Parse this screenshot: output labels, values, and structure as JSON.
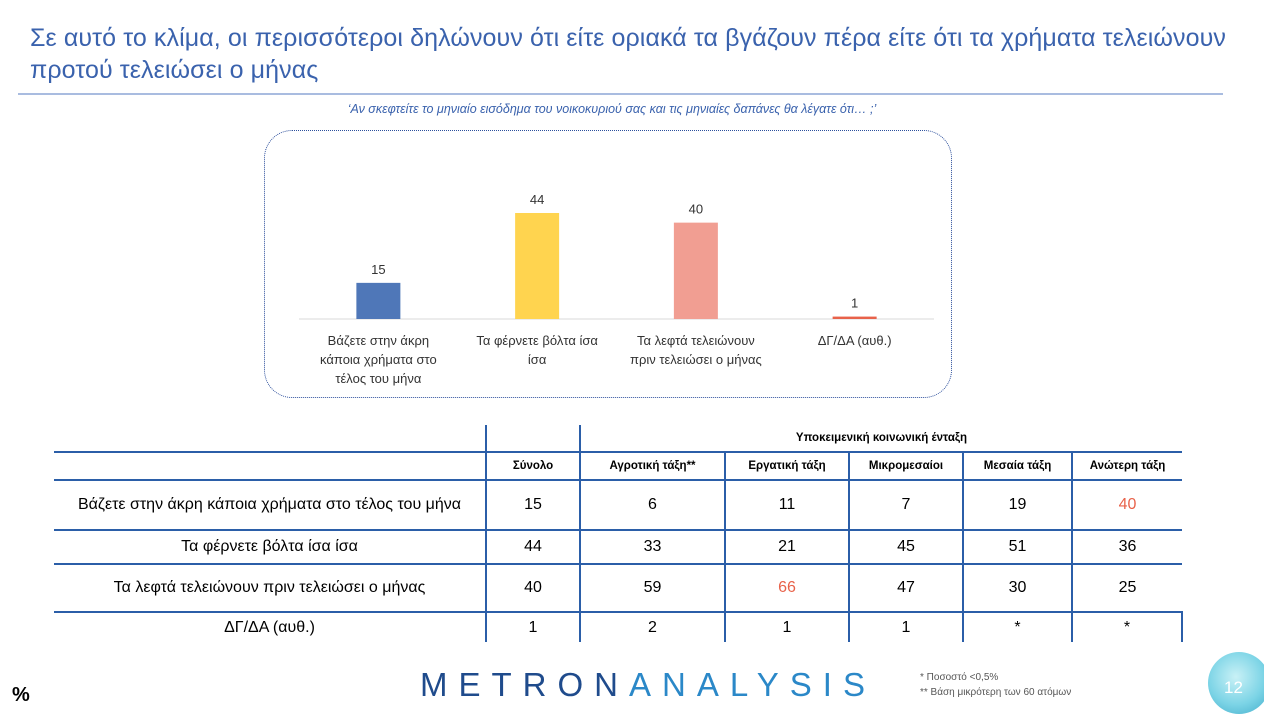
{
  "title": "Σε αυτό το κλίμα, οι περισσότεροι δηλώνουν ότι είτε οριακά τα βγάζουν πέρα είτε ότι τα χρήματα τελειώνουν προτού τελειώσει ο μήνας",
  "question": "‘Αν σκεφτείτε το μηνιαίο εισόδημα του νοικοκυριού σας και τις μηνιαίες δαπάνες θα λέγατε ότι… ;’",
  "chart_data": {
    "type": "bar",
    "categories": [
      [
        "Βάζετε στην άκρη",
        "κάποια χρήματα στο",
        "τέλος του μήνα"
      ],
      [
        "Τα φέρνετε βόλτα ίσα",
        "ίσα"
      ],
      [
        "Τα λεφτά τελειώνουν",
        "πριν τελειώσει ο μήνας"
      ],
      [
        "ΔΓ/ΔΑ (αυθ.)"
      ]
    ],
    "values": [
      15,
      44,
      40,
      1
    ],
    "colors": [
      "#4f77b8",
      "#ffd44f",
      "#f19e92",
      "#e8624a"
    ],
    "ylim": [
      0,
      50
    ]
  },
  "table": {
    "group_header": "Υποκειμενική κοινωνική ένταξη",
    "columns": [
      "Σύνολο",
      "Αγροτική τάξη**",
      "Εργατική τάξη",
      "Μικρομεσαίοι",
      "Μεσαία τάξη",
      "Ανώτερη τάξη"
    ],
    "rows": [
      {
        "label": "Βάζετε στην άκρη κάποια χρήματα στο τέλος του μήνα",
        "values": [
          "15",
          "6",
          "11",
          "7",
          "19",
          "40"
        ]
      },
      {
        "label": "Τα φέρνετε βόλτα ίσα ίσα",
        "values": [
          "44",
          "33",
          "21",
          "45",
          "51",
          "36"
        ]
      },
      {
        "label": "Τα λεφτά τελειώνουν πριν τελειώσει ο μήνας",
        "values": [
          "40",
          "59",
          "66",
          "47",
          "30",
          "25"
        ]
      },
      {
        "label": "ΔΓ/ΔΑ (αυθ.)",
        "values": [
          "1",
          "2",
          "1",
          "1",
          "*",
          "*"
        ]
      }
    ],
    "highlight_color": "#e8624a"
  },
  "logo": {
    "part1": "METRON",
    "part2": "ANALYSIS"
  },
  "footnotes": [
    "*  Ποσοστό <0,5%",
    "**  Βάση μικρότερη των 60 ατόμων"
  ],
  "unit_symbol": "%",
  "page_number": "12"
}
